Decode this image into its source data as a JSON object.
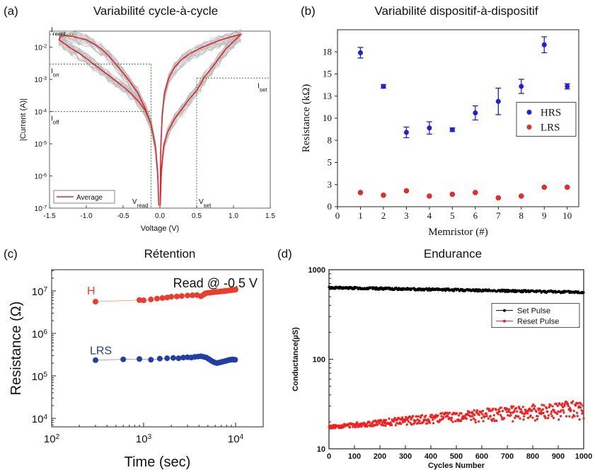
{
  "panels": {
    "a": {
      "letter": "(a)",
      "title": "Variabilité cycle-à-cycle"
    },
    "b": {
      "letter": "(b)",
      "title": "Variabilité dispositif-à-dispositif"
    },
    "c": {
      "letter": "(c)",
      "title": "Rétention"
    },
    "d": {
      "letter": "(d)",
      "title": "Endurance"
    }
  },
  "chart_data": [
    {
      "id": "a",
      "type": "line",
      "title": "Variabilité cycle-à-cycle",
      "xlabel": "Voltage (V)",
      "ylabel": "|Current (A)|",
      "xlim": [
        -1.5,
        1.5
      ],
      "ylim_log10": [
        -7,
        -1.5
      ],
      "x_ticks": [
        "-1.5",
        "-1.0",
        "-0.5",
        "0.0",
        "0.5",
        "1.0",
        "1.5"
      ],
      "y_ticks": [
        {
          "base": "10",
          "exp": "-7"
        },
        {
          "base": "10",
          "exp": "-6"
        },
        {
          "base": "10",
          "exp": "-5"
        },
        {
          "base": "10",
          "exp": "-4"
        },
        {
          "base": "10",
          "exp": "-3"
        },
        {
          "base": "10",
          "exp": "-2"
        }
      ],
      "legend": {
        "entries": [
          "Average"
        ],
        "position": "bottom-left"
      },
      "grey_cycles_shown": true,
      "average_curve": {
        "color": "#e0262c",
        "points": [
          [
            -1.35,
            0.022
          ],
          [
            -1.3,
            0.023
          ],
          [
            -1.2,
            0.022
          ],
          [
            -1.1,
            0.0195
          ],
          [
            -1.0,
            0.017
          ],
          [
            -0.9,
            0.0128
          ],
          [
            -0.8,
            0.009
          ],
          [
            -0.7,
            0.0055
          ],
          [
            -0.6,
            0.003
          ],
          [
            -0.5,
            0.0016
          ],
          [
            -0.4,
            0.0008
          ],
          [
            -0.3,
            0.00038
          ],
          [
            -0.2,
            0.000125
          ],
          [
            -0.12,
            4e-05
          ],
          [
            -0.06,
            8e-06
          ],
          [
            -0.03,
            1.2e-06
          ],
          [
            -0.015,
            1.2e-07
          ],
          [
            -0.015,
            1.2e-07
          ],
          [
            -0.03,
            1.2e-06
          ],
          [
            -0.06,
            8e-06
          ],
          [
            -0.12,
            4e-05
          ],
          [
            -0.2,
            0.00011
          ],
          [
            -0.3,
            0.00022
          ],
          [
            -0.4,
            0.00038
          ],
          [
            -0.5,
            0.0006
          ],
          [
            -0.6,
            0.0009
          ],
          [
            -0.7,
            0.00135
          ],
          [
            -0.8,
            0.002
          ],
          [
            -0.9,
            0.003
          ],
          [
            -1.0,
            0.0045
          ],
          [
            -1.1,
            0.0065
          ],
          [
            -1.2,
            0.009
          ],
          [
            -1.3,
            0.013
          ],
          [
            -1.37,
            0.017
          ],
          [
            -1.35,
            0.022
          ]
        ],
        "positive_branch": [
          [
            0.005,
            1.2e-07
          ],
          [
            0.02,
            1.5e-06
          ],
          [
            0.05,
            8e-06
          ],
          [
            0.1,
            2.2e-05
          ],
          [
            0.2,
            6e-05
          ],
          [
            0.3,
            0.00012
          ],
          [
            0.4,
            0.00025
          ],
          [
            0.5,
            0.00045
          ],
          [
            0.55,
            0.0007
          ],
          [
            0.6,
            0.00115
          ],
          [
            0.7,
            0.0022
          ],
          [
            0.8,
            0.0045
          ],
          [
            0.9,
            0.009
          ],
          [
            1.0,
            0.015
          ],
          [
            1.1,
            0.025
          ],
          [
            1.0,
            0.022
          ],
          [
            0.9,
            0.019
          ],
          [
            0.8,
            0.016
          ],
          [
            0.7,
            0.013
          ],
          [
            0.6,
            0.0105
          ],
          [
            0.5,
            0.0082
          ],
          [
            0.4,
            0.0062
          ],
          [
            0.3,
            0.0042
          ],
          [
            0.2,
            0.0024
          ],
          [
            0.12,
            0.0011
          ],
          [
            0.06,
            0.00035
          ],
          [
            0.03,
            7e-05
          ],
          [
            0.01,
            5.5e-06
          ],
          [
            0.005,
            1.2e-07
          ]
        ]
      },
      "annotations": [
        {
          "base": "I",
          "sub": "reset",
          "value_A": 0.025
        },
        {
          "base": "I",
          "sub": "on",
          "value_A": 0.003
        },
        {
          "base": "I",
          "sub": "off",
          "value_A": 0.0001
        },
        {
          "base": "I",
          "sub": "set",
          "value_A": 0.0011
        },
        {
          "base": "V",
          "sub": "read",
          "value_V": -0.12
        },
        {
          "base": "V",
          "sub": "set",
          "value_V": 0.5
        }
      ]
    },
    {
      "id": "b",
      "type": "scatter",
      "title": "Variabilité dispositif-à-dispositif",
      "xlabel": "Memristor (#)",
      "ylabel": "Resistance (kΩ)",
      "xlim": [
        0,
        10.5
      ],
      "ylim": [
        0,
        20
      ],
      "x_ticks": [
        "0",
        "1",
        "2",
        "3",
        "4",
        "5",
        "6",
        "7",
        "8",
        "9",
        "10"
      ],
      "y_ticks": [
        "0",
        "3",
        "5",
        "8",
        "10",
        "13",
        "15",
        "18"
      ],
      "legend": {
        "position": "center-right"
      },
      "series": [
        {
          "name": "HRS",
          "color": "#1f1fdc",
          "x": [
            1,
            2,
            3,
            4,
            5,
            6,
            7,
            8,
            9,
            10
          ],
          "values": [
            17.4,
            13.6,
            8.4,
            8.9,
            8.7,
            10.6,
            11.9,
            13.6,
            18.3,
            13.6
          ],
          "errors": [
            0.6,
            0.2,
            0.6,
            0.7,
            0.2,
            0.8,
            1.5,
            0.8,
            0.9,
            0.3
          ]
        },
        {
          "name": "LRS",
          "color": "#ec2a2a",
          "x": [
            1,
            2,
            3,
            4,
            5,
            6,
            7,
            8,
            9,
            10
          ],
          "values": [
            1.6,
            1.3,
            1.8,
            1.2,
            1.4,
            1.6,
            1.0,
            1.2,
            2.2,
            2.2
          ]
        }
      ]
    },
    {
      "id": "c",
      "type": "scatter",
      "title": "Rétention",
      "xlabel": "Time (sec)",
      "ylabel": "Resistance (Ω)",
      "annotation": "Read @ -0.5 V",
      "xlim_log10": [
        2,
        4.3
      ],
      "ylim_log10": [
        3.8,
        7.5
      ],
      "x_ticks": [
        {
          "base": "10",
          "exp": "2"
        },
        {
          "base": "10",
          "exp": "3"
        },
        {
          "base": "10",
          "exp": "4"
        }
      ],
      "y_ticks": [
        {
          "base": "10",
          "exp": "4"
        },
        {
          "base": "10",
          "exp": "5"
        },
        {
          "base": "10",
          "exp": "6"
        },
        {
          "base": "10",
          "exp": "7"
        }
      ],
      "series": [
        {
          "name": "H",
          "color": "#f03a2a",
          "x": [
            300,
            900,
            1000,
            1200,
            1400,
            1600,
            1800,
            2000,
            2300,
            2600,
            3000,
            3400,
            3800,
            4200,
            4500,
            4700,
            5000,
            5300,
            5600,
            5900,
            6200,
            6500,
            6800,
            7100,
            7400,
            7700,
            8000,
            8300,
            8600,
            8900,
            9200,
            9500,
            9800,
            10000
          ],
          "values": [
            5600000.0,
            6100000.0,
            6000000.0,
            6300000.0,
            6600000.0,
            6800000.0,
            7000000.0,
            7300000.0,
            7400000.0,
            7600000.0,
            7800000.0,
            7900000.0,
            8000000.0,
            7500000.0,
            8200000.0,
            8800000.0,
            9000000.0,
            9100000.0,
            9300000.0,
            9400000.0,
            9500000.0,
            9600000.0,
            9700000.0,
            9800000.0,
            9900000.0,
            10000000.0,
            10100000.0,
            10200000.0,
            10300000.0,
            10400000.0,
            10500000.0,
            10600000.0,
            10700000.0,
            10800000.0
          ]
        },
        {
          "name": "LRS",
          "color": "#1f3fa8",
          "x": [
            300,
            600,
            900,
            1200,
            1500,
            1800,
            2100,
            2400,
            2700,
            3000,
            3300,
            3600,
            3900,
            4200,
            4500,
            4800,
            5100,
            5400,
            5700,
            6000,
            6300,
            6600,
            6900,
            7200,
            7500,
            7800,
            8100,
            8400,
            8700,
            9000,
            9300,
            9600,
            9900
          ],
          "values": [
            235000.0,
            245000.0,
            250000.0,
            240000.0,
            255000.0,
            260000.0,
            265000.0,
            260000.0,
            270000.0,
            275000.0,
            270000.0,
            280000.0,
            285000.0,
            290000.0,
            280000.0,
            270000.0,
            250000.0,
            230000.0,
            215000.0,
            205000.0,
            200000.0,
            205000.0,
            210000.0,
            215000.0,
            220000.0,
            225000.0,
            230000.0,
            235000.0,
            240000.0,
            240000.0,
            245000.0,
            240000.0,
            240000.0
          ]
        }
      ]
    },
    {
      "id": "d",
      "type": "scatter",
      "title": "Endurance",
      "xlabel": "Cycles Number",
      "ylabel": "Conductance(µS)",
      "xlim": [
        0,
        1000
      ],
      "ylim_log10": [
        1,
        3
      ],
      "x_ticks": [
        "0",
        "100",
        "200",
        "300",
        "400",
        "500",
        "600",
        "700",
        "800",
        "900",
        "1000"
      ],
      "y_ticks": [
        "10",
        "100",
        "1000"
      ],
      "legend": {
        "position": "center-right"
      },
      "series": [
        {
          "name": "Set Pulse",
          "color": "#000000",
          "trend_start": 630,
          "trend_end": 560,
          "spread_fraction": 0.03
        },
        {
          "name": "Reset Pulse",
          "color": "#ff1a1a",
          "trend_start": 17.5,
          "trend_end": 28,
          "spread_fraction_start": 0.04,
          "spread_fraction_end": 0.25
        }
      ]
    }
  ]
}
